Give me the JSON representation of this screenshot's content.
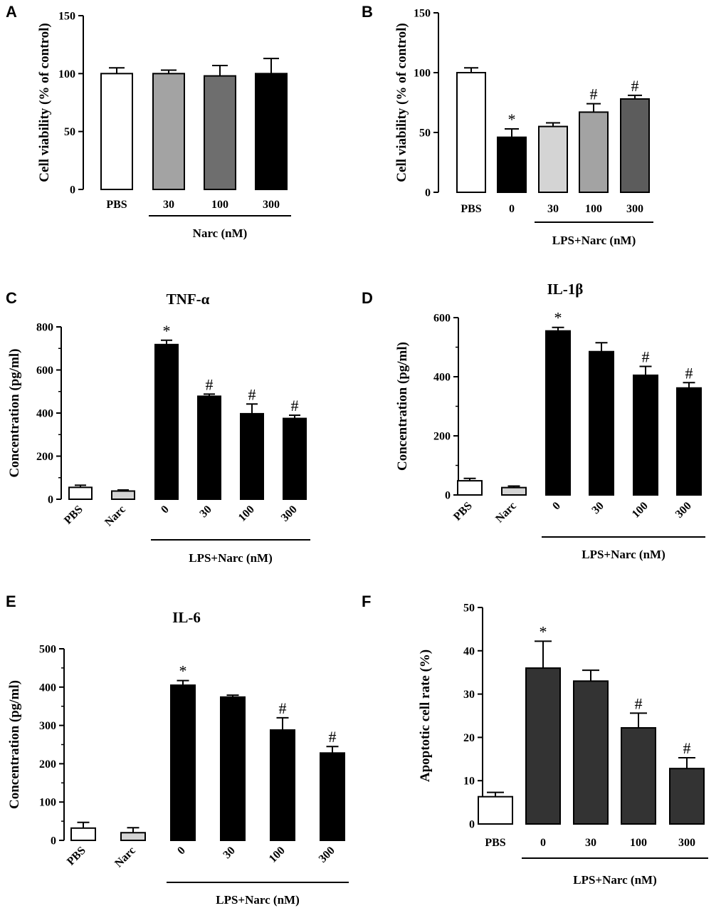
{
  "colors": {
    "white": "#ffffff",
    "black": "#000000",
    "light_gray": "#d4d4d4",
    "mid_gray": "#a3a3a3",
    "dark_gray": "#6e6e6e",
    "darker_gray": "#5c5c5c",
    "charcoal": "#333333"
  },
  "chart_data": [
    {
      "panel": "A",
      "type": "bar",
      "title": "",
      "ylabel": "Cell viability (% of control)",
      "ylim": [
        0,
        150
      ],
      "yticks": [
        0,
        50,
        100,
        150
      ],
      "categories": [
        "PBS",
        "30",
        "100",
        "300"
      ],
      "values": [
        100,
        100,
        98,
        100
      ],
      "errors": [
        5,
        3,
        9,
        13
      ],
      "colors": [
        "#ffffff",
        "#a3a3a3",
        "#6e6e6e",
        "#000000"
      ],
      "significance": [
        "",
        "",
        "",
        ""
      ],
      "group_label": "Narc (nM)",
      "group_span": [
        1,
        3
      ],
      "rotated_labels": false
    },
    {
      "panel": "B",
      "type": "bar",
      "title": "",
      "ylabel": "Cell viability (% of control)",
      "ylim": [
        0,
        150
      ],
      "yticks": [
        0,
        50,
        100,
        150
      ],
      "categories": [
        "PBS",
        "0",
        "30",
        "100",
        "300"
      ],
      "values": [
        100,
        46,
        55,
        67,
        78
      ],
      "errors": [
        4,
        7,
        3,
        7,
        3
      ],
      "colors": [
        "#ffffff",
        "#000000",
        "#d4d4d4",
        "#a3a3a3",
        "#5c5c5c"
      ],
      "significance": [
        "",
        "*",
        "",
        "#",
        "#"
      ],
      "group_label": "LPS+Narc (nM)",
      "group_span": [
        2,
        4
      ],
      "rotated_labels": false
    },
    {
      "panel": "C",
      "type": "bar",
      "title": "TNF-α",
      "ylabel": "Concentration (pg/ml)",
      "ylim": [
        0,
        800
      ],
      "yticks": [
        0,
        200,
        400,
        600,
        800
      ],
      "categories": [
        "PBS",
        "Narc",
        "0",
        "30",
        "100",
        "300"
      ],
      "values": [
        55,
        38,
        718,
        478,
        397,
        375
      ],
      "errors": [
        10,
        5,
        20,
        10,
        45,
        15
      ],
      "colors": [
        "#ffffff",
        "#d4d4d4",
        "#000000",
        "#000000",
        "#000000",
        "#000000"
      ],
      "significance": [
        "",
        "",
        "*",
        "#",
        "#",
        "#"
      ],
      "group_label": "LPS+Narc (nM)",
      "group_span": [
        2,
        5
      ],
      "rotated_labels": true
    },
    {
      "panel": "D",
      "type": "bar",
      "title": "IL-1β",
      "ylabel": "Concentration (pg/ml)",
      "ylim": [
        0,
        600
      ],
      "yticks": [
        0,
        200,
        400,
        600
      ],
      "categories": [
        "PBS",
        "Narc",
        "0",
        "30",
        "100",
        "300"
      ],
      "values": [
        48,
        25,
        555,
        485,
        405,
        362
      ],
      "errors": [
        8,
        5,
        12,
        30,
        30,
        18
      ],
      "colors": [
        "#ffffff",
        "#d4d4d4",
        "#000000",
        "#000000",
        "#000000",
        "#000000"
      ],
      "significance": [
        "",
        "",
        "*",
        "",
        "#",
        "#"
      ],
      "group_label": "LPS+Narc (nM)",
      "group_span": [
        2,
        5
      ],
      "rotated_labels": true
    },
    {
      "panel": "E",
      "type": "bar",
      "title": "IL-6",
      "ylabel": "Concentration (pg/ml)",
      "ylim": [
        0,
        500
      ],
      "yticks": [
        0,
        100,
        200,
        300,
        400,
        500
      ],
      "categories": [
        "PBS",
        "Narc",
        "0",
        "30",
        "100",
        "300"
      ],
      "values": [
        32,
        20,
        405,
        374,
        288,
        228
      ],
      "errors": [
        15,
        13,
        12,
        5,
        32,
        17
      ],
      "colors": [
        "#ffffff",
        "#d4d4d4",
        "#000000",
        "#000000",
        "#000000",
        "#000000"
      ],
      "significance": [
        "",
        "",
        "*",
        "",
        "#",
        "#"
      ],
      "group_label": "LPS+Narc (nM)",
      "group_span": [
        2,
        5
      ],
      "rotated_labels": true
    },
    {
      "panel": "F",
      "type": "bar",
      "title": "",
      "ylabel": "Apoptotic cell rate (%)",
      "ylim": [
        0,
        50
      ],
      "yticks": [
        0,
        10,
        20,
        30,
        40,
        50
      ],
      "categories": [
        "PBS",
        "0",
        "30",
        "100",
        "300"
      ],
      "values": [
        6.3,
        36,
        33,
        22.2,
        12.8
      ],
      "errors": [
        1,
        6.2,
        2.5,
        3.4,
        2.5
      ],
      "colors": [
        "#ffffff",
        "#333333",
        "#333333",
        "#333333",
        "#333333"
      ],
      "significance": [
        "",
        "*",
        "",
        "#",
        "#"
      ],
      "group_label": "LPS+Narc (nM)",
      "group_span": [
        1,
        4
      ],
      "rotated_labels": false
    }
  ]
}
